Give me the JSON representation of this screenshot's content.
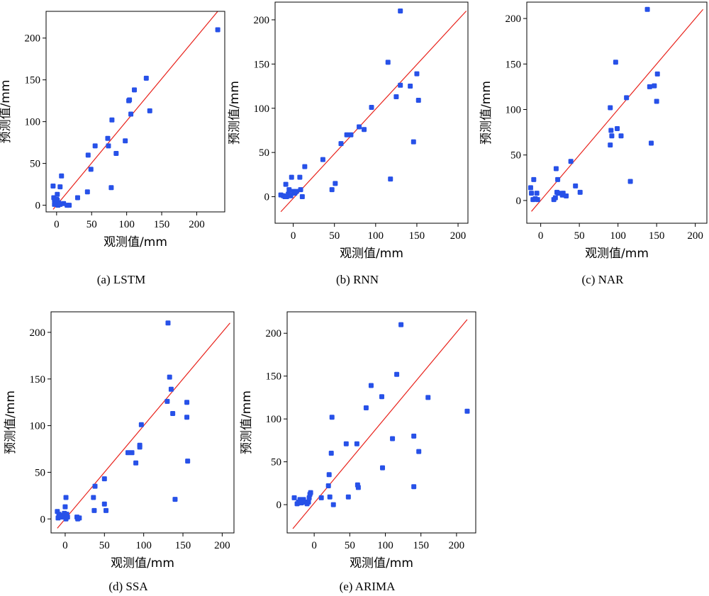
{
  "chart_data": [
    {
      "type": "scatter",
      "caption": "(a) LSTM",
      "xlabel": "观测值/mm",
      "ylabel": "预测值/mm",
      "xlim": [
        -15,
        240
      ],
      "ylim": [
        -8,
        232
      ],
      "xticks": [
        0,
        50,
        100,
        150,
        200
      ],
      "yticks": [
        0,
        50,
        100,
        150,
        200
      ],
      "reference_line": [
        [
          -5,
          -5
        ],
        [
          230,
          232
        ]
      ],
      "points": [
        [
          -5,
          23
        ],
        [
          -4,
          9
        ],
        [
          -3,
          6
        ],
        [
          -3,
          1
        ],
        [
          -1,
          2
        ],
        [
          0,
          4
        ],
        [
          0,
          7
        ],
        [
          1,
          13
        ],
        [
          1,
          6
        ],
        [
          2,
          0
        ],
        [
          3,
          3
        ],
        [
          5,
          1
        ],
        [
          5,
          22
        ],
        [
          7,
          35
        ],
        [
          10,
          2
        ],
        [
          15,
          0
        ],
        [
          18,
          0
        ],
        [
          30,
          9
        ],
        [
          44,
          16
        ],
        [
          45,
          60
        ],
        [
          49,
          43
        ],
        [
          55,
          71
        ],
        [
          73,
          80
        ],
        [
          74,
          71
        ],
        [
          78,
          21
        ],
        [
          79,
          102
        ],
        [
          85,
          62
        ],
        [
          98,
          77
        ],
        [
          103,
          125
        ],
        [
          104,
          126
        ],
        [
          106,
          109
        ],
        [
          111,
          138
        ],
        [
          128,
          152
        ],
        [
          133,
          113
        ],
        [
          230,
          210
        ]
      ]
    },
    {
      "type": "scatter",
      "caption": "(b) RNN",
      "xlabel": "观测值/mm",
      "ylabel": "预测值/mm",
      "xlim": [
        -22,
        212
      ],
      "ylim": [
        -30,
        220
      ],
      "xticks": [
        0,
        50,
        100,
        150,
        200
      ],
      "yticks": [
        0,
        50,
        100,
        150,
        200
      ],
      "reference_line": [
        [
          -15,
          -17
        ],
        [
          210,
          210
        ]
      ],
      "points": [
        [
          -15,
          2
        ],
        [
          -12,
          1
        ],
        [
          -10,
          0
        ],
        [
          -9,
          14
        ],
        [
          -8,
          0
        ],
        [
          -6,
          3
        ],
        [
          -5,
          8
        ],
        [
          -3,
          1
        ],
        [
          -2,
          22
        ],
        [
          0,
          6
        ],
        [
          2,
          4
        ],
        [
          4,
          6
        ],
        [
          8,
          22
        ],
        [
          9,
          8
        ],
        [
          11,
          0
        ],
        [
          14,
          34
        ],
        [
          36,
          42
        ],
        [
          47,
          8
        ],
        [
          51,
          15
        ],
        [
          58,
          60
        ],
        [
          65,
          70
        ],
        [
          70,
          70
        ],
        [
          80,
          79
        ],
        [
          86,
          76
        ],
        [
          95,
          101
        ],
        [
          115,
          152
        ],
        [
          118,
          20
        ],
        [
          125,
          113
        ],
        [
          130,
          126
        ],
        [
          130,
          210
        ],
        [
          142,
          125
        ],
        [
          146,
          62
        ],
        [
          150,
          139
        ],
        [
          152,
          109
        ]
      ]
    },
    {
      "type": "scatter",
      "caption": "(c) NAR",
      "xlabel": "观测值/mm",
      "ylabel": "预测值/mm",
      "xlim": [
        -18,
        215
      ],
      "ylim": [
        -25,
        218
      ],
      "xticks": [
        0,
        50,
        100,
        150,
        200
      ],
      "yticks": [
        0,
        50,
        100,
        150,
        200
      ],
      "reference_line": [
        [
          -12,
          -12
        ],
        [
          210,
          210
        ]
      ],
      "points": [
        [
          -13,
          14
        ],
        [
          -12,
          8
        ],
        [
          -10,
          1
        ],
        [
          -9,
          23
        ],
        [
          -7,
          2
        ],
        [
          -5,
          8
        ],
        [
          -4,
          1
        ],
        [
          17,
          1
        ],
        [
          19,
          3
        ],
        [
          20,
          35
        ],
        [
          21,
          9
        ],
        [
          22,
          23
        ],
        [
          23,
          8
        ],
        [
          28,
          6
        ],
        [
          29,
          8
        ],
        [
          33,
          5
        ],
        [
          39,
          43
        ],
        [
          45,
          16
        ],
        [
          51,
          9
        ],
        [
          90,
          102
        ],
        [
          90,
          61
        ],
        [
          91,
          77
        ],
        [
          92,
          71
        ],
        [
          97,
          152
        ],
        [
          99,
          79
        ],
        [
          104,
          71
        ],
        [
          111,
          113
        ],
        [
          138,
          210
        ],
        [
          141,
          125
        ],
        [
          143,
          63
        ],
        [
          147,
          126
        ],
        [
          150,
          109
        ],
        [
          151,
          139
        ],
        [
          116,
          21
        ]
      ]
    },
    {
      "type": "scatter",
      "caption": "(d) SSA",
      "xlabel": "观测值/mm",
      "ylabel": "预测值/mm",
      "xlim": [
        -18,
        215
      ],
      "ylim": [
        -15,
        222
      ],
      "xticks": [
        0,
        50,
        100,
        150,
        200
      ],
      "yticks": [
        0,
        50,
        100,
        150,
        200
      ],
      "reference_line": [
        [
          -10,
          -10
        ],
        [
          210,
          210
        ]
      ],
      "points": [
        [
          -10,
          8
        ],
        [
          -9,
          1
        ],
        [
          -8,
          5
        ],
        [
          -6,
          3
        ],
        [
          -4,
          4
        ],
        [
          -3,
          2
        ],
        [
          -1,
          6
        ],
        [
          0,
          13
        ],
        [
          1,
          23
        ],
        [
          1,
          0
        ],
        [
          2,
          5
        ],
        [
          3,
          2
        ],
        [
          15,
          2
        ],
        [
          16,
          0
        ],
        [
          18,
          1
        ],
        [
          36,
          23
        ],
        [
          37,
          9
        ],
        [
          38,
          35
        ],
        [
          50,
          16
        ],
        [
          52,
          9
        ],
        [
          50,
          43
        ],
        [
          80,
          71
        ],
        [
          85,
          71
        ],
        [
          90,
          60
        ],
        [
          95,
          79
        ],
        [
          95,
          77
        ],
        [
          97,
          101
        ],
        [
          130,
          126
        ],
        [
          133,
          152
        ],
        [
          135,
          139
        ],
        [
          137,
          113
        ],
        [
          140,
          21
        ],
        [
          155,
          125
        ],
        [
          155,
          109
        ],
        [
          156,
          62
        ],
        [
          131,
          210
        ]
      ]
    },
    {
      "type": "scatter",
      "caption": "(e) ARIMA",
      "xlabel": "观测值/mm",
      "ylabel": "预测值/mm",
      "xlim": [
        -38,
        227
      ],
      "ylim": [
        -33,
        225
      ],
      "xticks": [
        0,
        50,
        100,
        150,
        200
      ],
      "yticks": [
        0,
        50,
        100,
        150,
        200
      ],
      "reference_line": [
        [
          -30,
          -28
        ],
        [
          215,
          216
        ]
      ],
      "points": [
        [
          -28,
          8
        ],
        [
          -24,
          1
        ],
        [
          -22,
          3
        ],
        [
          -20,
          6
        ],
        [
          -18,
          2
        ],
        [
          -15,
          6
        ],
        [
          -12,
          3
        ],
        [
          -10,
          1
        ],
        [
          -8,
          3
        ],
        [
          -7,
          8
        ],
        [
          -6,
          12
        ],
        [
          -5,
          14
        ],
        [
          10,
          8
        ],
        [
          20,
          22
        ],
        [
          21,
          35
        ],
        [
          22,
          9
        ],
        [
          24,
          60
        ],
        [
          25,
          102
        ],
        [
          27,
          0
        ],
        [
          45,
          71
        ],
        [
          48,
          9
        ],
        [
          60,
          71
        ],
        [
          61,
          23
        ],
        [
          62,
          20
        ],
        [
          73,
          113
        ],
        [
          80,
          139
        ],
        [
          95,
          126
        ],
        [
          96,
          43
        ],
        [
          110,
          77
        ],
        [
          116,
          152
        ],
        [
          122,
          210
        ],
        [
          140,
          80
        ],
        [
          140,
          21
        ],
        [
          147,
          62
        ],
        [
          160,
          125
        ],
        [
          215,
          109
        ]
      ]
    }
  ]
}
